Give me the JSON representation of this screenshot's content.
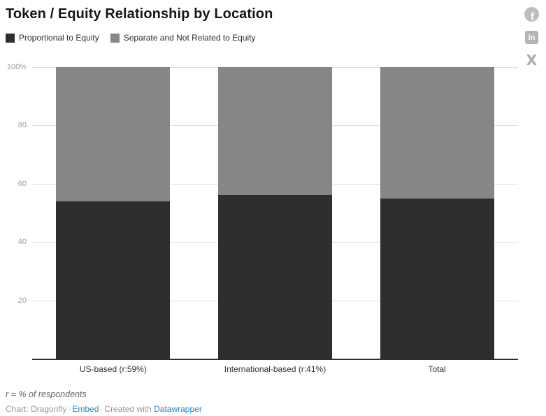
{
  "header": {
    "title": "Token / Equity Relationship by Location"
  },
  "share": {
    "facebook_glyph": "f",
    "linkedin_glyph": "in",
    "x_glyph": "X",
    "icon_color": "#b5b5b5"
  },
  "chart_data": {
    "type": "bar",
    "stacked": true,
    "unit": "%",
    "title": "Token / Equity Relationship by Location",
    "categories": [
      "US-based (r:59%)",
      "International-based (r:41%)",
      "Total"
    ],
    "series": [
      {
        "name": "Proportional to Equity",
        "color": "#2e2e2e",
        "values": [
          54,
          56,
          55
        ]
      },
      {
        "name": "Separate and Not Related to Equity",
        "color": "#868686",
        "values": [
          46,
          44,
          45
        ]
      }
    ],
    "ylim": [
      0,
      100
    ],
    "yticks": [
      20,
      40,
      60,
      80,
      100
    ],
    "ytick_labels": [
      "20",
      "40",
      "60",
      "80",
      "100%"
    ],
    "grid": true,
    "grid_color": "#e1e1e1",
    "axis_line_color": "#2e2e2e",
    "legend_position": "top"
  },
  "footer": {
    "note": "r = % of respondents",
    "credit_prefix": "Chart: Dragonfly",
    "separator": "·",
    "embed_label": "Embed",
    "created_with": "Created with",
    "datawrapper_label": "Datawrapper",
    "link_color": "#1e87c5"
  }
}
